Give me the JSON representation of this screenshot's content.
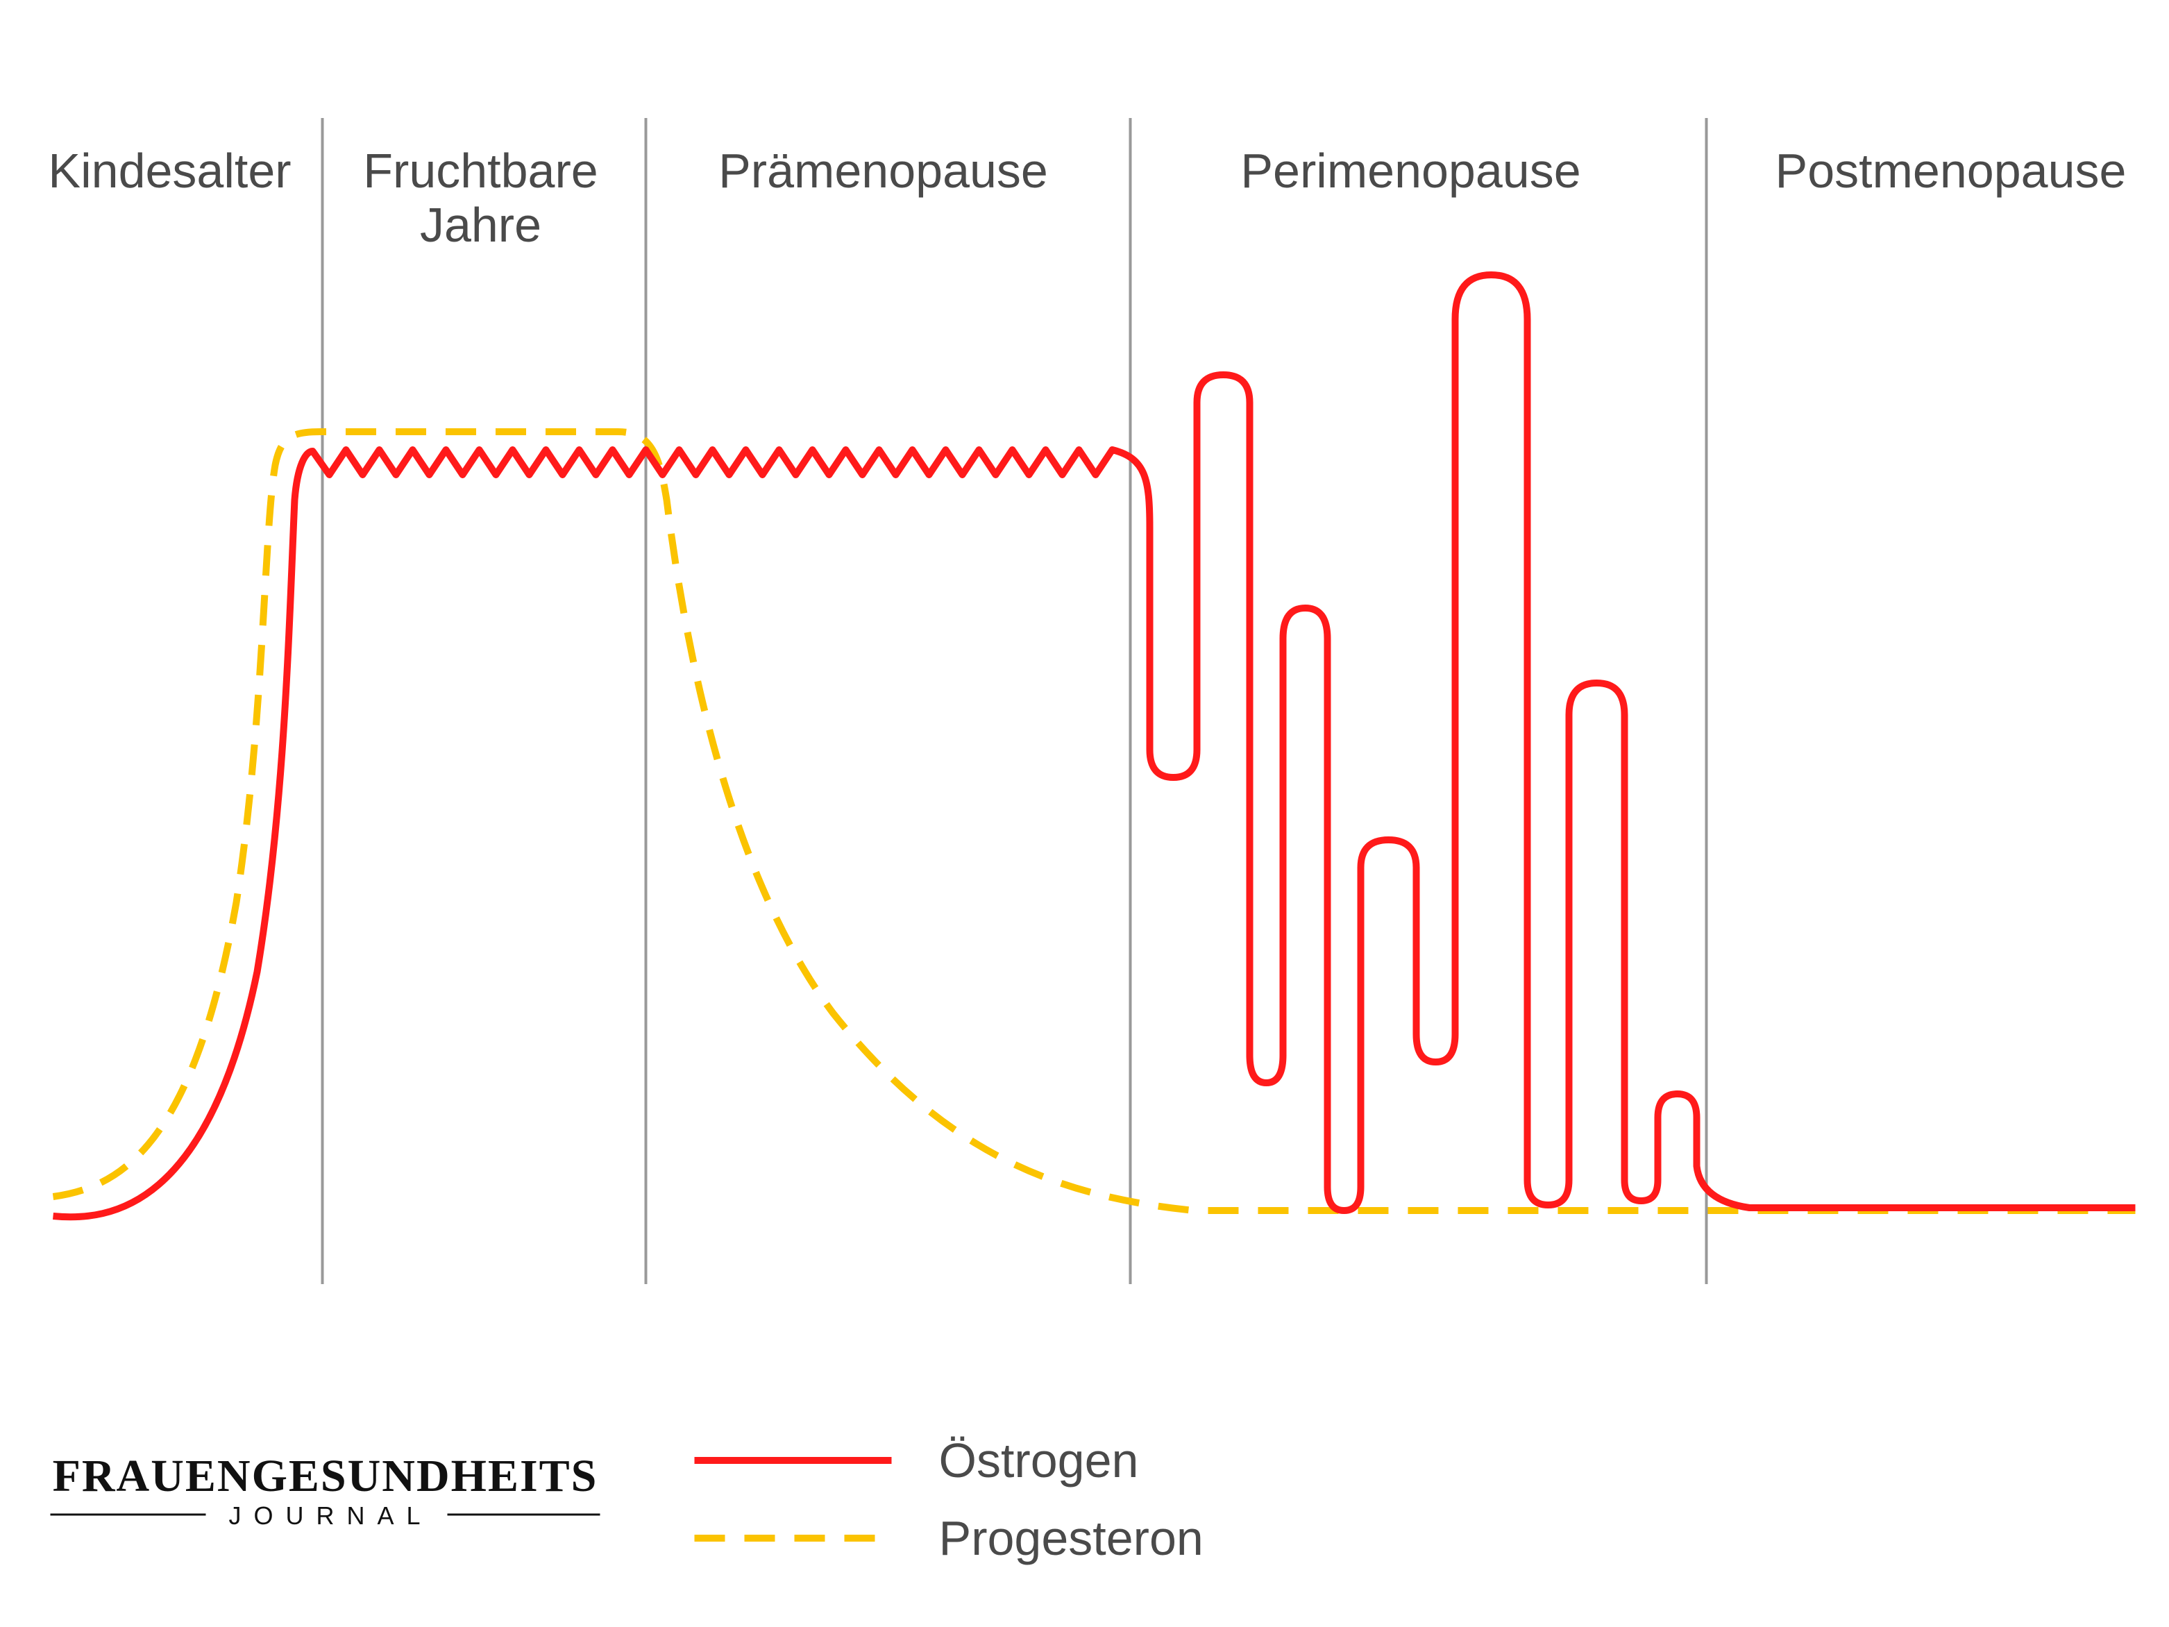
{
  "phases": [
    {
      "lines": [
        "Kindesalter"
      ]
    },
    {
      "lines": [
        "Fruchtbare",
        "Jahre"
      ]
    },
    {
      "lines": [
        "Prämenopause"
      ]
    },
    {
      "lines": [
        "Perimenopause"
      ]
    },
    {
      "lines": [
        "Postmenopause"
      ]
    }
  ],
  "legend": {
    "estrogen": "Östrogen",
    "progesterone": "Progesteron"
  },
  "logo": {
    "title": "FRAUENGESUNDHEITS",
    "subtitle": "JOURNAL"
  }
}
